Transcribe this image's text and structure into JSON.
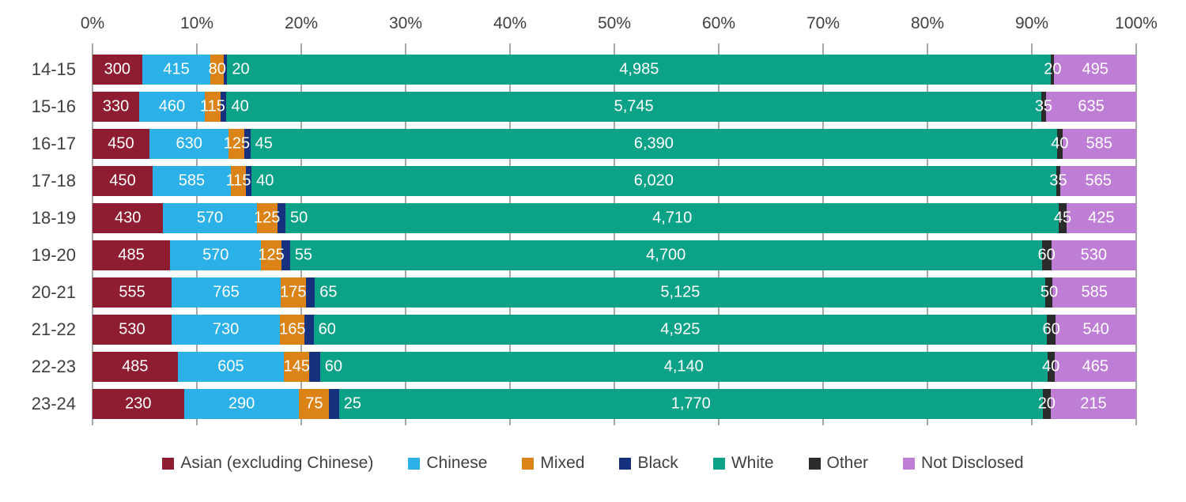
{
  "chart_data": {
    "type": "bar",
    "subtype": "100%-stacked-horizontal",
    "title": "",
    "xlabel": "",
    "ylabel": "",
    "axis_range_percent": [
      0,
      100
    ],
    "gridlines": true,
    "legend_position": "bottom",
    "x_axis": {
      "position": "top",
      "ticks": [
        "0%",
        "10%",
        "20%",
        "30%",
        "40%",
        "50%",
        "60%",
        "70%",
        "80%",
        "90%",
        "100%"
      ]
    },
    "categories": [
      "14-15",
      "15-16",
      "16-17",
      "17-18",
      "18-19",
      "19-20",
      "20-21",
      "21-22",
      "22-23",
      "23-24"
    ],
    "series": [
      {
        "name": "Asian (excluding Chinese)",
        "color": "#8E1D31",
        "values": [
          300,
          330,
          450,
          450,
          430,
          485,
          555,
          530,
          485,
          230
        ]
      },
      {
        "name": "Chinese",
        "color": "#2BB0E8",
        "values": [
          415,
          460,
          630,
          585,
          570,
          570,
          765,
          730,
          605,
          290
        ]
      },
      {
        "name": "Mixed",
        "color": "#DC8317",
        "values": [
          80,
          115,
          125,
          115,
          125,
          125,
          175,
          165,
          145,
          75
        ]
      },
      {
        "name": "Black",
        "color": "#16327E",
        "label_placement": "outside-right",
        "values": [
          20,
          40,
          45,
          40,
          50,
          55,
          65,
          60,
          60,
          25
        ]
      },
      {
        "name": "White",
        "color": "#0BA287",
        "values": [
          4985,
          5745,
          6390,
          6020,
          4710,
          4700,
          5125,
          4925,
          4140,
          1770
        ]
      },
      {
        "name": "Other",
        "color": "#2B2B2B",
        "values": [
          20,
          35,
          40,
          35,
          45,
          60,
          50,
          60,
          40,
          20
        ]
      },
      {
        "name": "Not Disclosed",
        "color": "#BF7ED6",
        "values": [
          495,
          635,
          585,
          565,
          425,
          530,
          585,
          540,
          465,
          215
        ]
      }
    ]
  },
  "colors": {
    "background": "#FFFFFF",
    "gridline": "#A6A6A6",
    "axis_text": "#404040",
    "bar_label_text": "#FFFFFF"
  }
}
